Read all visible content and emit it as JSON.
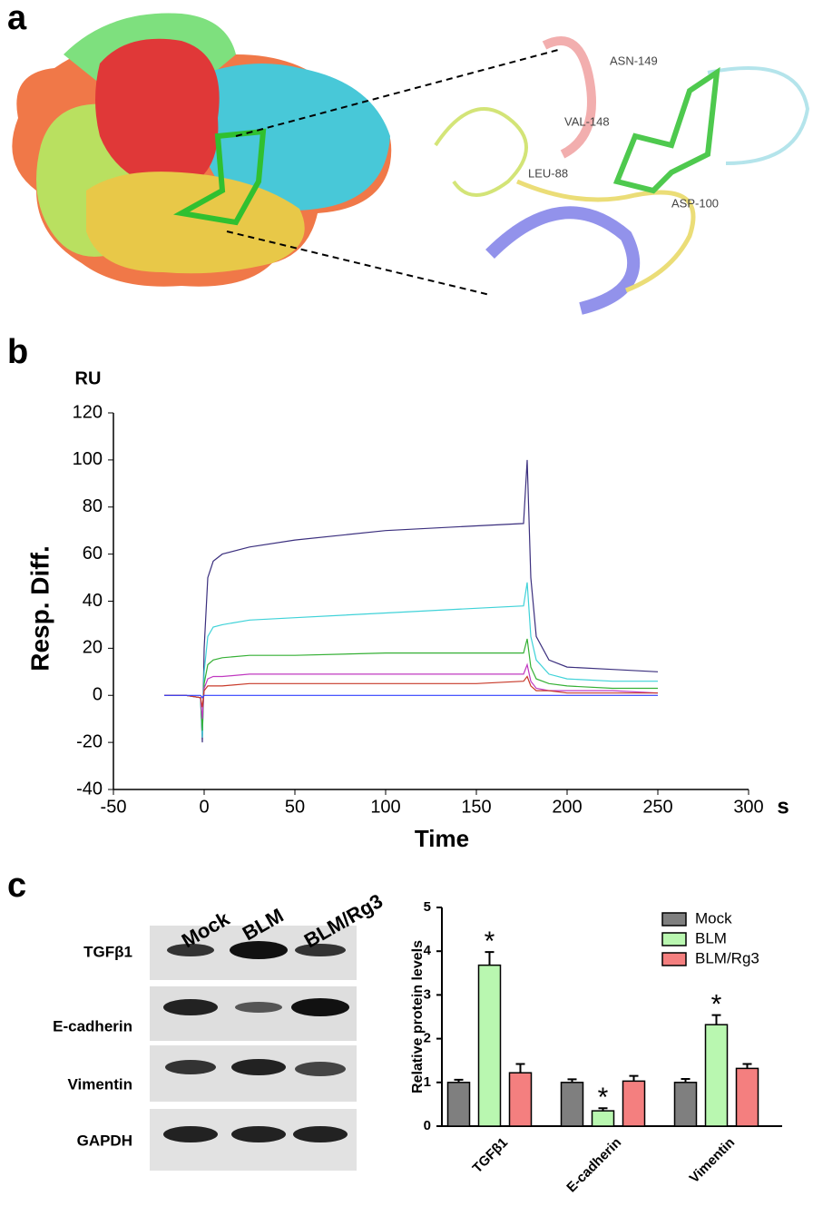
{
  "panel_a": {
    "label": "a",
    "residues": [
      "ASN-149",
      "VAL-148",
      "LEU-88",
      "ASP-100"
    ]
  },
  "panel_b": {
    "label": "b"
  },
  "panel_c": {
    "label": "c",
    "blot": {
      "lanes": [
        "Mock",
        "BLM",
        "BLM/Rg3"
      ],
      "rows": [
        "TGFβ1",
        "E-cadherin",
        "Vimentin",
        "GAPDH"
      ]
    }
  },
  "chart_data": [
    {
      "type": "line",
      "y_title": "Resp. Diff.",
      "x_title": "Time",
      "y_unit": "RU",
      "x_unit": "s",
      "x": [
        -22,
        -10,
        -2,
        -1,
        0,
        2,
        5,
        10,
        25,
        50,
        100,
        150,
        176,
        178,
        180,
        183,
        190,
        200,
        225,
        250
      ],
      "series": [
        {
          "color": "#3b2f7e",
          "values": [
            0,
            0,
            -1,
            -20,
            20,
            50,
            57,
            60,
            63,
            66,
            70,
            72,
            73,
            100,
            50,
            25,
            15,
            12,
            11,
            10
          ]
        },
        {
          "color": "#3fd2d8",
          "values": [
            0,
            0,
            -1,
            -18,
            10,
            25,
            29,
            30,
            32,
            33,
            35,
            37,
            38,
            48,
            25,
            15,
            9,
            7,
            6,
            6
          ]
        },
        {
          "color": "#35b035",
          "values": [
            0,
            0,
            -1,
            -15,
            5,
            13,
            15,
            16,
            17,
            17,
            18,
            18,
            18,
            24,
            12,
            7,
            5,
            4,
            3,
            3
          ]
        },
        {
          "color": "#c038c0",
          "values": [
            0,
            0,
            -1,
            -10,
            3,
            7,
            8,
            8,
            9,
            9,
            9,
            9,
            9,
            13,
            6,
            3,
            2,
            2,
            2,
            1
          ]
        },
        {
          "color": "#c83a2a",
          "values": [
            0,
            0,
            -1,
            -5,
            2,
            4,
            4,
            4,
            5,
            5,
            5,
            5,
            6,
            8,
            4,
            2,
            2,
            1,
            1,
            1
          ]
        },
        {
          "color": "#3040ff",
          "values": [
            0,
            0,
            0,
            -1,
            0,
            0,
            0,
            0,
            0,
            0,
            0,
            0,
            0,
            0,
            0,
            0,
            0,
            0,
            0,
            0
          ]
        }
      ],
      "xlim": [
        -50,
        300
      ],
      "xticks": [
        -50,
        0,
        50,
        100,
        150,
        200,
        250,
        300
      ],
      "ylim": [
        -40,
        120
      ],
      "yticks": [
        -40,
        -20,
        0,
        20,
        40,
        60,
        80,
        100,
        120
      ]
    },
    {
      "type": "bar",
      "y_title": "Relative protein levels",
      "categories": [
        "TGFβ1",
        "E-cadherin",
        "Vimentin"
      ],
      "series": [
        {
          "name": "Mock",
          "color": "#7f7f7f",
          "values": [
            1,
            1,
            1
          ],
          "errors": [
            0.06,
            0.07,
            0.08
          ]
        },
        {
          "name": "BLM",
          "color": "#b9f7b0",
          "values": [
            3.68,
            0.35,
            2.32
          ],
          "errors": [
            0.3,
            0.06,
            0.22
          ],
          "markers": [
            "*",
            "*",
            "*"
          ]
        },
        {
          "name": "BLM/Rg3",
          "color": "#f47f7f",
          "values": [
            1.22,
            1.03,
            1.32
          ],
          "errors": [
            0.2,
            0.12,
            0.1
          ]
        }
      ],
      "ylim": [
        0,
        5
      ],
      "yticks": [
        0,
        1,
        2,
        3,
        4,
        5
      ],
      "legend": "top-right"
    }
  ]
}
